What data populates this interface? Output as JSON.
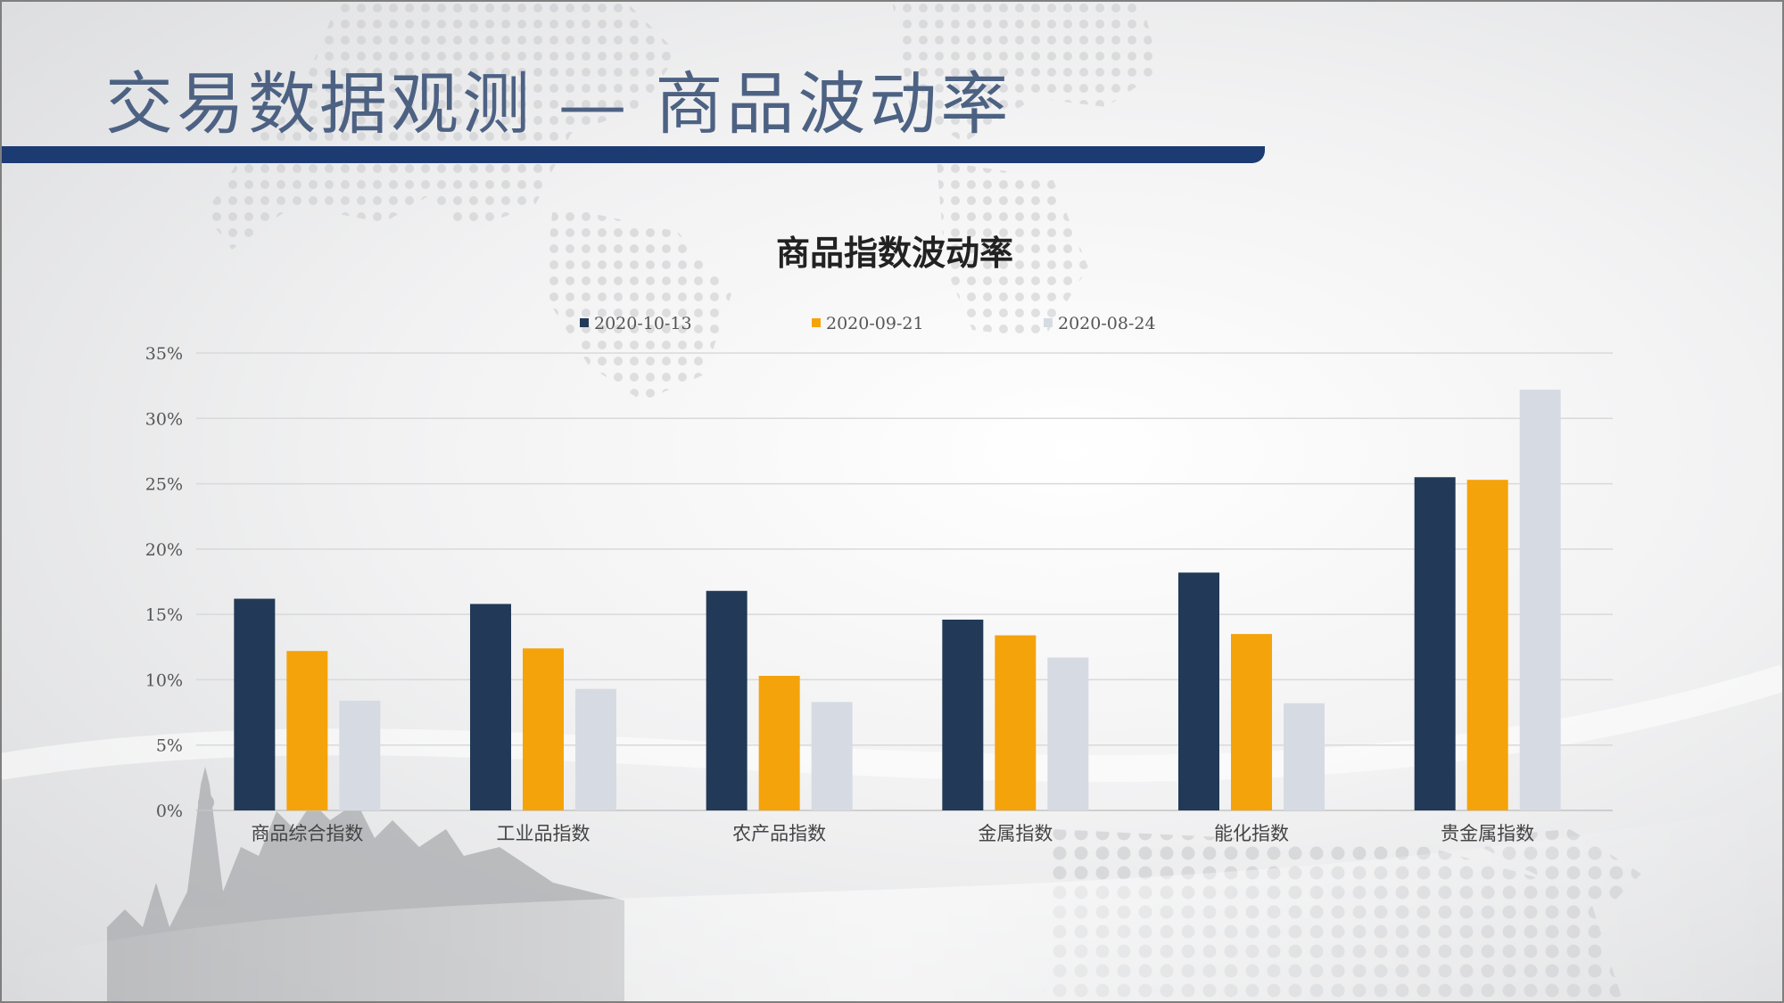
{
  "slide": {
    "title": "交易数据观测 — 商品波动率"
  },
  "colors": {
    "title_text": "#4d6283",
    "title_bar": "#1d3b73",
    "series": [
      "#223a57",
      "#f5a30b",
      "#d6dbe3"
    ]
  },
  "chart_data": {
    "type": "bar",
    "title": "商品指数波动率",
    "categories": [
      "商品综合指数",
      "工业品指数",
      "农产品指数",
      "金属指数",
      "能化指数",
      "贵金属指数"
    ],
    "series": [
      {
        "name": "2020-10-13",
        "values": [
          16.2,
          15.8,
          16.8,
          14.6,
          18.2,
          25.5
        ]
      },
      {
        "name": "2020-09-21",
        "values": [
          12.2,
          12.4,
          10.3,
          13.4,
          13.5,
          25.3
        ]
      },
      {
        "name": "2020-08-24",
        "values": [
          8.4,
          9.3,
          8.3,
          11.7,
          8.2,
          32.2
        ]
      }
    ],
    "y_ticks": [
      "0%",
      "5%",
      "10%",
      "15%",
      "20%",
      "25%",
      "30%",
      "35%"
    ],
    "y_unit": "%",
    "ylim": [
      0,
      35
    ],
    "grid": true,
    "legend_position": "top-center"
  }
}
